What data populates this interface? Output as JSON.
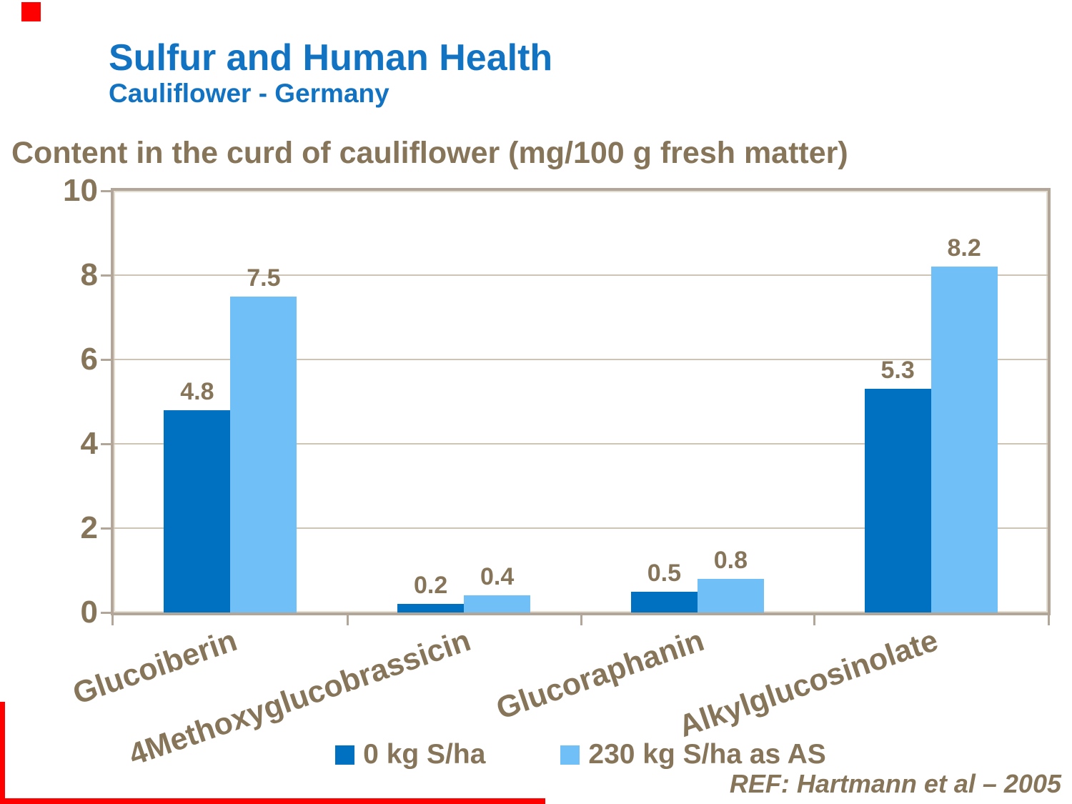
{
  "slide": {
    "title": "Sulfur and Human Health",
    "subtitle": "Cauliflower - Germany",
    "reference": "REF: Hartmann et al – 2005"
  },
  "chart_data": {
    "type": "bar",
    "title": "Content in the curd of cauliflower (mg/100 g fresh matter)",
    "categories": [
      "Glucoiberin",
      "4Methoxyglucobrassicin",
      "Glucoraphanin",
      "Alkylglucosinolate"
    ],
    "series": [
      {
        "name": "0 kg S/ha",
        "color": "#0070c0",
        "values": [
          4.8,
          0.2,
          0.5,
          5.3
        ]
      },
      {
        "name": "230 kg S/ha as AS",
        "color": "#70bff7",
        "values": [
          7.5,
          0.4,
          0.8,
          8.2
        ]
      }
    ],
    "ylabel": "",
    "xlabel": "",
    "ylim": [
      0,
      10
    ],
    "yticks": [
      0,
      2,
      4,
      6,
      8,
      10
    ],
    "grid": true,
    "data_labels": true,
    "legend_position": "bottom",
    "category_label_rotation_deg": -19
  },
  "colors": {
    "title_blue": "#1273c2",
    "text_brown": "#87755a",
    "frame_tan": "#b1a698",
    "gridline_tan": "#cdc4b6",
    "accent_red": "#ff0000",
    "background": "#ffffff"
  }
}
